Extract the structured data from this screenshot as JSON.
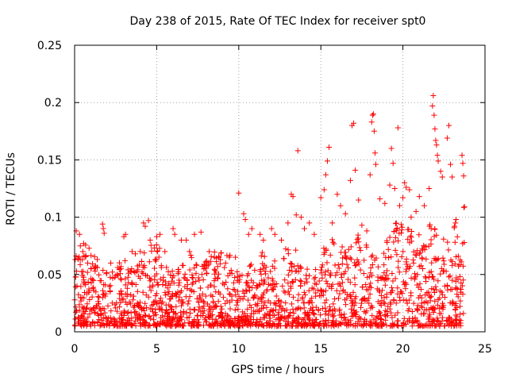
{
  "chart_data": {
    "type": "scatter",
    "title": "Day 238 of 2015, Rate Of TEC Index for receiver spt0",
    "xlabel": "GPS time / hours",
    "ylabel": "ROTI / TECUs",
    "xlim": [
      0,
      25
    ],
    "ylim": [
      0,
      0.25
    ],
    "xticks": [
      0,
      5,
      10,
      15,
      20,
      25
    ],
    "xtick_labels": [
      "0",
      "5",
      "10",
      "15",
      "20",
      "25"
    ],
    "yticks": [
      0,
      0.05,
      0.1,
      0.15,
      0.2,
      0.25
    ],
    "ytick_labels": [
      "0",
      "0.05",
      "0.1",
      "0.15",
      "0.2",
      "0.25"
    ],
    "grid": true,
    "marker": "plus",
    "color": "#ff0000",
    "series": [
      {
        "name": "ROTI",
        "x_range": [
          0,
          23.75
        ],
        "typical_band": [
          0.005,
          0.05
        ],
        "points": [
          [
            0.1,
            0.088
          ],
          [
            0.3,
            0.085
          ],
          [
            0.35,
            0.075
          ],
          [
            0.5,
            0.07
          ],
          [
            0.8,
            0.06
          ],
          [
            1.0,
            0.055
          ],
          [
            1.7,
            0.094
          ],
          [
            1.75,
            0.09
          ],
          [
            1.8,
            0.086
          ],
          [
            2.2,
            0.06
          ],
          [
            2.6,
            0.05
          ],
          [
            3.0,
            0.083
          ],
          [
            3.1,
            0.085
          ],
          [
            3.5,
            0.07
          ],
          [
            3.7,
            0.068
          ],
          [
            4.0,
            0.07
          ],
          [
            4.2,
            0.095
          ],
          [
            4.3,
            0.092
          ],
          [
            4.5,
            0.097
          ],
          [
            4.6,
            0.08
          ],
          [
            4.9,
            0.063
          ],
          [
            5.0,
            0.083
          ],
          [
            5.2,
            0.085
          ],
          [
            5.5,
            0.07
          ],
          [
            6.0,
            0.09
          ],
          [
            6.1,
            0.085
          ],
          [
            6.5,
            0.08
          ],
          [
            6.8,
            0.08
          ],
          [
            7.0,
            0.07
          ],
          [
            7.3,
            0.085
          ],
          [
            7.7,
            0.087
          ],
          [
            8.2,
            0.07
          ],
          [
            8.8,
            0.065
          ],
          [
            9.2,
            0.06
          ],
          [
            9.8,
            0.065
          ],
          [
            10.0,
            0.121
          ],
          [
            10.3,
            0.103
          ],
          [
            10.4,
            0.098
          ],
          [
            10.6,
            0.085
          ],
          [
            10.8,
            0.09
          ],
          [
            11.3,
            0.085
          ],
          [
            11.5,
            0.08
          ],
          [
            12.0,
            0.09
          ],
          [
            12.2,
            0.085
          ],
          [
            12.6,
            0.08
          ],
          [
            13.0,
            0.095
          ],
          [
            13.2,
            0.12
          ],
          [
            13.3,
            0.118
          ],
          [
            13.5,
            0.102
          ],
          [
            13.6,
            0.158
          ],
          [
            13.8,
            0.1
          ],
          [
            14.0,
            0.09
          ],
          [
            14.3,
            0.095
          ],
          [
            14.6,
            0.085
          ],
          [
            15.0,
            0.117
          ],
          [
            15.2,
            0.124
          ],
          [
            15.3,
            0.137
          ],
          [
            15.4,
            0.149
          ],
          [
            15.5,
            0.161
          ],
          [
            15.7,
            0.095
          ],
          [
            16.0,
            0.12
          ],
          [
            16.2,
            0.11
          ],
          [
            16.5,
            0.103
          ],
          [
            16.8,
            0.132
          ],
          [
            16.9,
            0.18
          ],
          [
            17.0,
            0.182
          ],
          [
            17.1,
            0.141
          ],
          [
            17.3,
            0.115
          ],
          [
            17.5,
            0.093
          ],
          [
            17.8,
            0.088
          ],
          [
            18.0,
            0.137
          ],
          [
            18.1,
            0.183
          ],
          [
            18.15,
            0.189
          ],
          [
            18.2,
            0.19
          ],
          [
            18.25,
            0.175
          ],
          [
            18.3,
            0.156
          ],
          [
            18.35,
            0.146
          ],
          [
            18.6,
            0.116
          ],
          [
            18.9,
            0.112
          ],
          [
            19.2,
            0.128
          ],
          [
            19.3,
            0.16
          ],
          [
            19.4,
            0.147
          ],
          [
            19.5,
            0.125
          ],
          [
            19.7,
            0.178
          ],
          [
            19.8,
            0.11
          ],
          [
            20.0,
            0.117
          ],
          [
            20.1,
            0.13
          ],
          [
            20.2,
            0.126
          ],
          [
            20.4,
            0.124
          ],
          [
            20.5,
            0.1
          ],
          [
            20.8,
            0.105
          ],
          [
            21.0,
            0.118
          ],
          [
            21.3,
            0.11
          ],
          [
            21.6,
            0.125
          ],
          [
            21.8,
            0.197
          ],
          [
            21.85,
            0.206
          ],
          [
            21.9,
            0.189
          ],
          [
            21.95,
            0.177
          ],
          [
            22.0,
            0.167
          ],
          [
            22.05,
            0.163
          ],
          [
            22.1,
            0.154
          ],
          [
            22.15,
            0.149
          ],
          [
            22.3,
            0.14
          ],
          [
            22.4,
            0.135
          ],
          [
            22.7,
            0.169
          ],
          [
            22.8,
            0.18
          ],
          [
            22.9,
            0.146
          ],
          [
            23.0,
            0.135
          ],
          [
            23.2,
            0.095
          ],
          [
            23.6,
            0.154
          ],
          [
            23.65,
            0.147
          ],
          [
            23.7,
            0.136
          ],
          [
            23.75,
            0.109
          ]
        ]
      }
    ]
  }
}
